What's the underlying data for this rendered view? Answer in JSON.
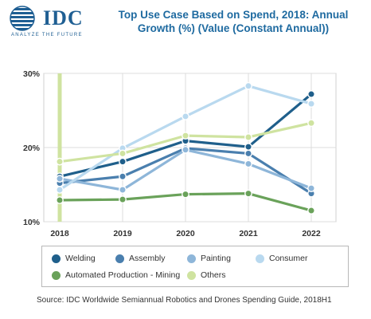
{
  "logo": {
    "wordmark": "IDC",
    "tagline": "ANALYZE THE FUTURE",
    "globe_icon": "globe-icon",
    "color": "#1f5f93"
  },
  "header": {
    "title_line1": "Top Use Case Based on Spend, 2018: Annual",
    "title_line2": "Growth (%) (Value (Constant Annual))"
  },
  "source": "Source: IDC Worldwide Semiannual Robotics and Drones Spending Guide, 2018H1",
  "chart_data": {
    "type": "line",
    "title": "Top Use Case Based on Spend, 2018: Annual Growth (%) (Value (Constant Annual))",
    "x": [
      "2018",
      "2019",
      "2020",
      "2021",
      "2022"
    ],
    "ylim": [
      10,
      30
    ],
    "yticks": [
      "10%",
      "20%",
      "30%"
    ],
    "grid": true,
    "legend_position": "bottom",
    "series": [
      {
        "name": "Welding",
        "color": "#1f5f8b",
        "values": [
          16.1,
          18.1,
          20.9,
          20.1,
          27.2
        ]
      },
      {
        "name": "Assembly",
        "color": "#4a7fae",
        "values": [
          15.2,
          16.1,
          19.9,
          19.2,
          13.8
        ]
      },
      {
        "name": "Painting",
        "color": "#8eb6d9",
        "values": [
          15.8,
          14.3,
          19.7,
          17.8,
          14.5
        ]
      },
      {
        "name": "Consumer",
        "color": "#b9d9ef",
        "values": [
          14.3,
          19.9,
          24.2,
          28.3,
          25.9
        ]
      },
      {
        "name": "Automated Production - Mining",
        "color": "#6aa25a",
        "values": [
          12.9,
          13.0,
          13.7,
          13.8,
          11.5
        ]
      },
      {
        "name": "Others",
        "color": "#cfe3a0",
        "values": [
          18.1,
          19.2,
          21.6,
          21.4,
          23.3
        ]
      }
    ]
  }
}
